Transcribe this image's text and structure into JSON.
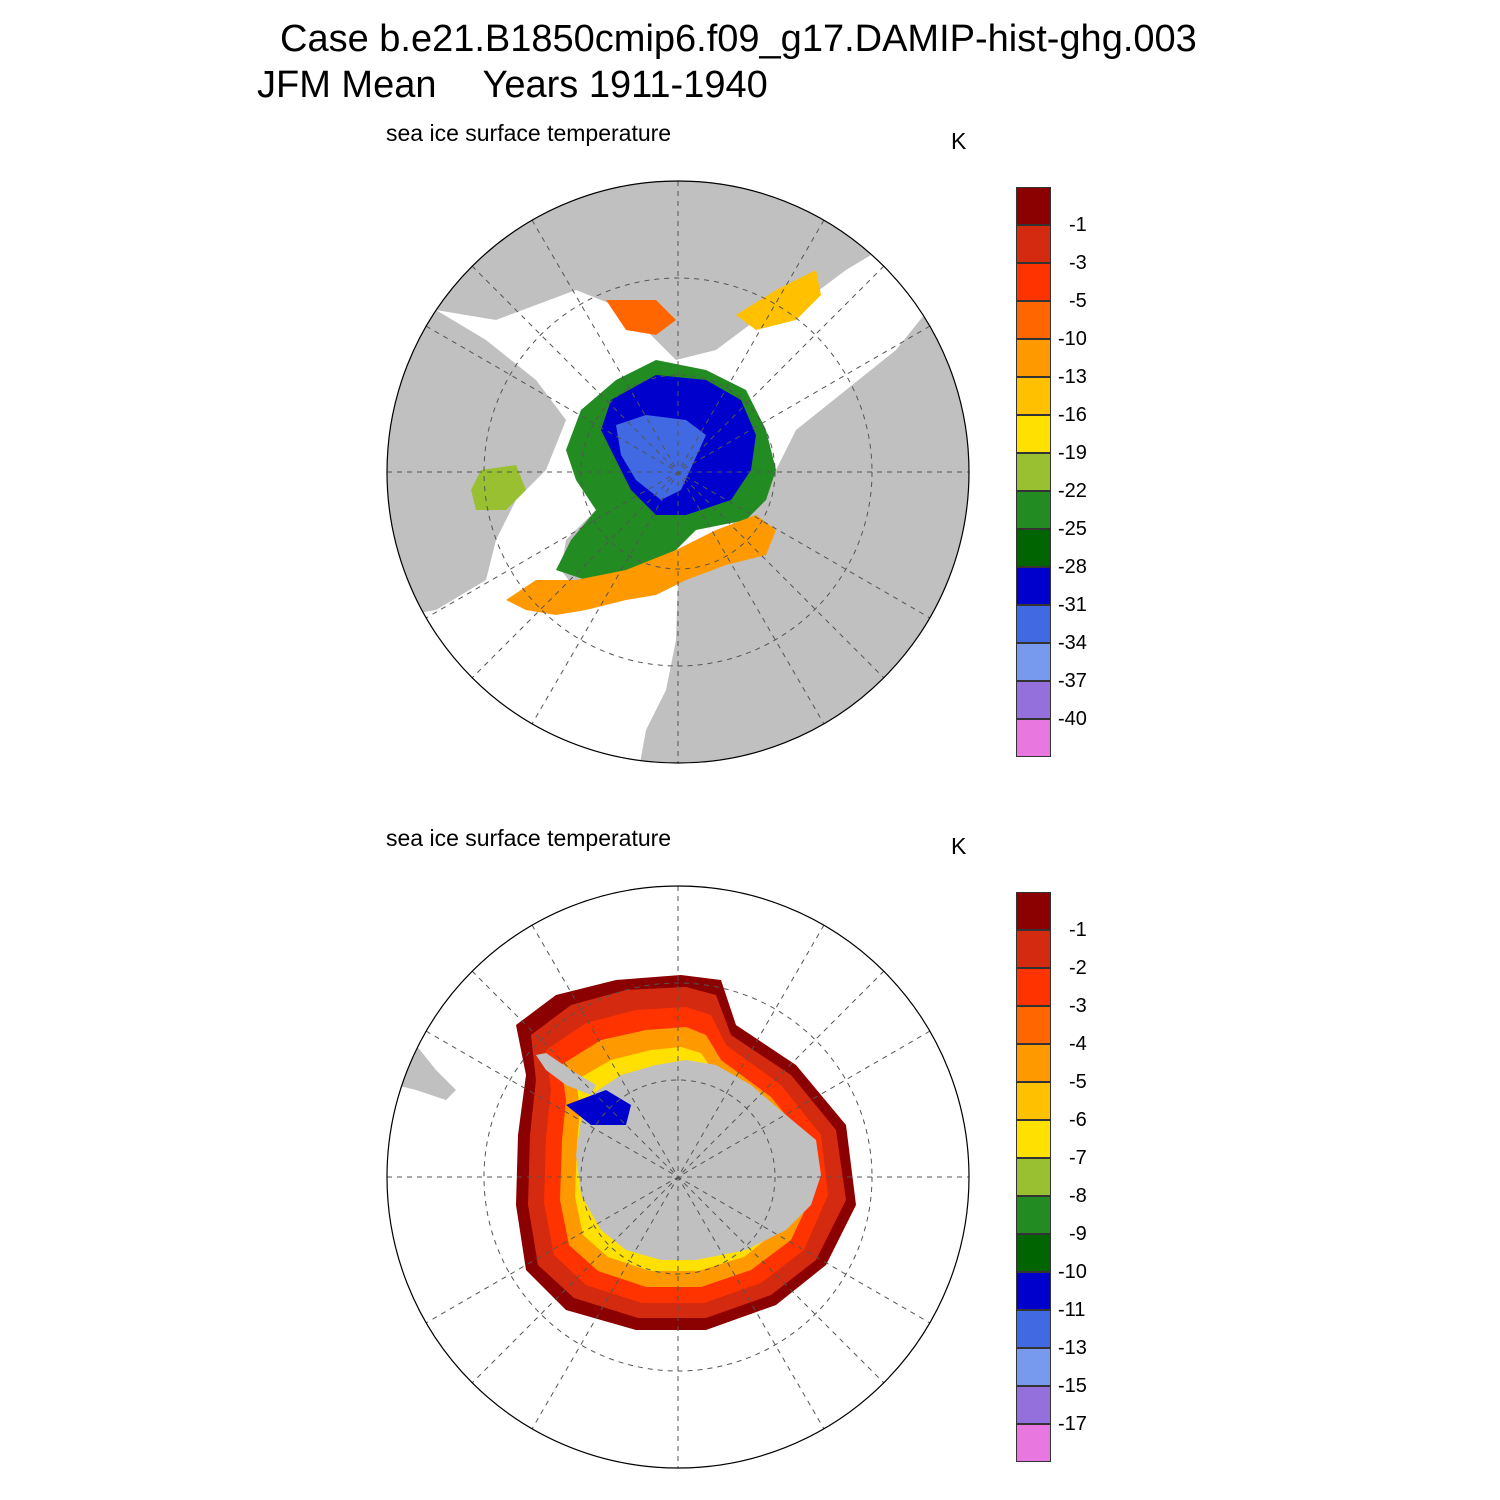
{
  "header": {
    "case_title": "Case b.e21.B1850cmip6.f09_g17.DAMIP-hist-ghg.003",
    "season": "JFM Mean",
    "years": "Years 1911-1940"
  },
  "panels": [
    {
      "subtitle": "sea ice surface temperature",
      "unit": "K",
      "hemisphere": "north",
      "colorbar": {
        "labels": [
          "-1",
          "-3",
          "-5",
          "-10",
          "-13",
          "-16",
          "-19",
          "-22",
          "-25",
          "-28",
          "-31",
          "-34",
          "-37",
          "-40"
        ]
      }
    },
    {
      "subtitle": "sea ice surface temperature",
      "unit": "K",
      "hemisphere": "south",
      "colorbar": {
        "labels": [
          "-1",
          "-2",
          "-3",
          "-4",
          "-5",
          "-6",
          "-7",
          "-8",
          "-9",
          "-10",
          "-11",
          "-13",
          "-15",
          "-17"
        ]
      }
    }
  ],
  "colors": {
    "palette": [
      "#8b0000",
      "#d42a10",
      "#ff3300",
      "#ff6600",
      "#ff9900",
      "#ffc000",
      "#ffe000",
      "#99c030",
      "#228b22",
      "#006400",
      "#0000cd",
      "#4169e1",
      "#7799ee",
      "#9370db",
      "#e878e0"
    ],
    "land": "#c0c0c0",
    "ocean": "#ffffff"
  }
}
